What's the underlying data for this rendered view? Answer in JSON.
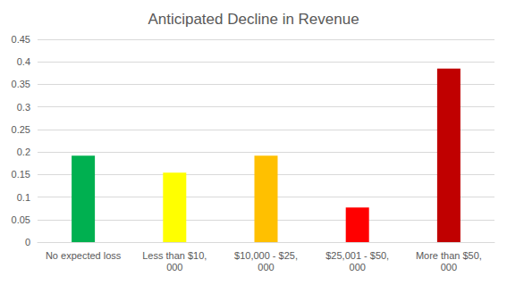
{
  "chart_data": {
    "type": "bar",
    "title": "Anticipated Decline in Revenue",
    "categories": [
      "No expected loss",
      "Less than $10,000",
      "$10,000 - $25,000",
      "$25,001 - $50,000",
      "More than $50,000"
    ],
    "values": [
      0.192,
      0.154,
      0.192,
      0.077,
      0.385
    ],
    "colors": [
      "#00b050",
      "#ffff00",
      "#ffc000",
      "#ff0000",
      "#c00000"
    ],
    "ylim": [
      0,
      0.45
    ],
    "yticks": [
      0,
      0.05,
      0.1,
      0.15,
      0.2,
      0.25,
      0.3,
      0.35,
      0.4,
      0.45
    ],
    "grid": true
  }
}
